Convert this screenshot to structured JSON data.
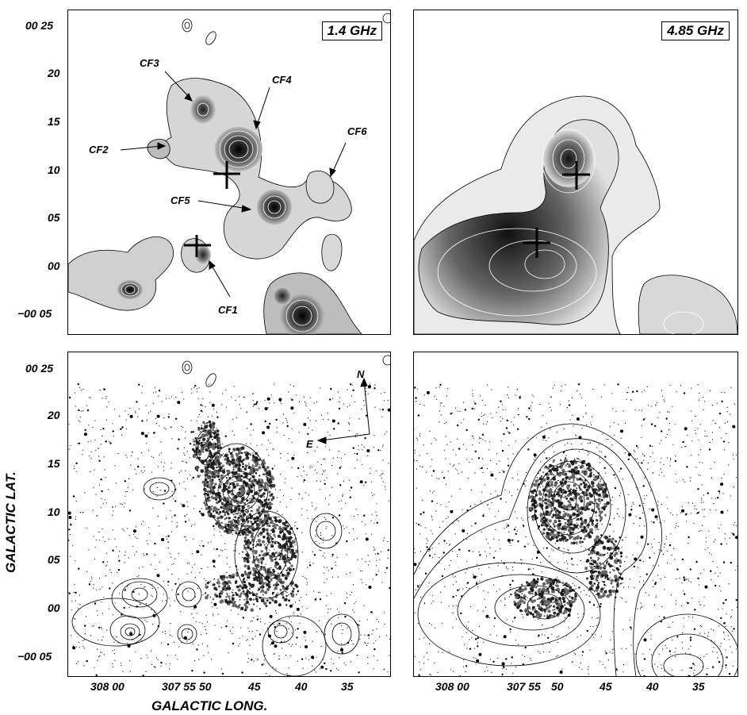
{
  "panels": {
    "top_left": {
      "frequency": "1.4 GHz"
    },
    "top_right": {
      "frequency": "4.85 GHz"
    }
  },
  "axes": {
    "y_label": "GALACTIC LAT.",
    "x_label": "GALACTIC LONG.",
    "y_ticks": [
      "00 25",
      "20",
      "15",
      "10",
      "05",
      "00",
      "−00 05"
    ],
    "x_ticks": [
      "308 00",
      "307 55",
      "50",
      "45",
      "40",
      "35"
    ]
  },
  "sources": {
    "cf1": "CF1",
    "cf2": "CF2",
    "cf3": "CF3",
    "cf4": "CF4",
    "cf5": "CF5",
    "cf6": "CF6"
  },
  "compass": {
    "north": "N",
    "east": "E"
  },
  "colors": {
    "contour": "#000000",
    "background": "#ffffff"
  }
}
